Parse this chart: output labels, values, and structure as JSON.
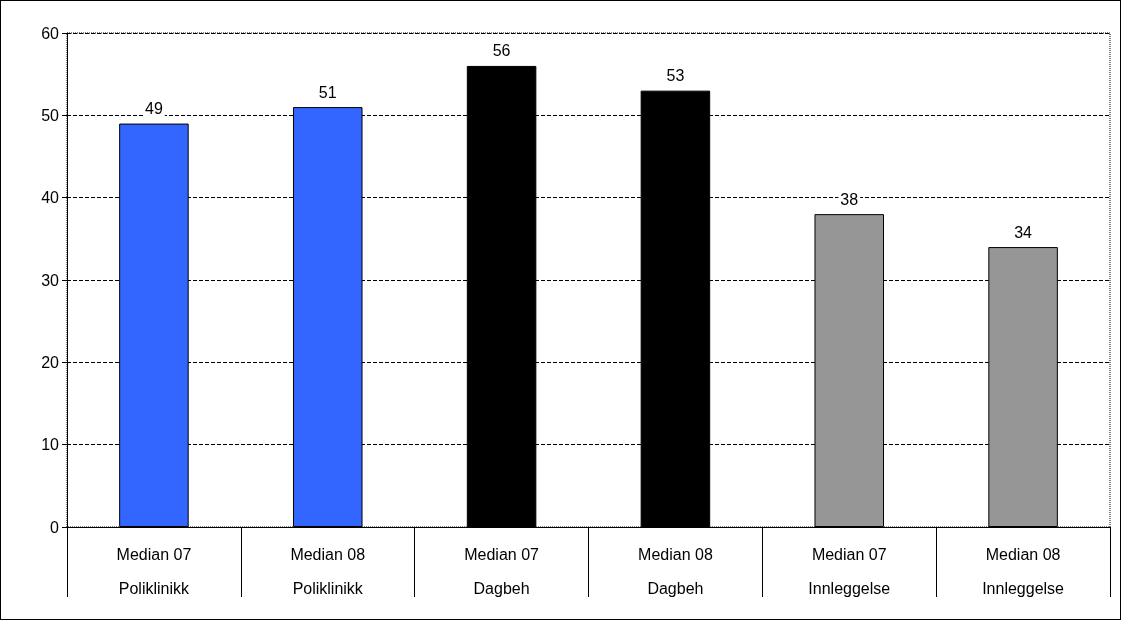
{
  "chart_data": {
    "type": "bar",
    "categories": [
      "Median 07\nPoliklinikk",
      "Median 08\nPoliklinikk",
      "Median 07\nDagbeh",
      "Median 08\nDagbeh",
      "Median 07\nInnleggelse",
      "Median 08\nInnleggelse"
    ],
    "values": [
      49,
      51,
      56,
      53,
      38,
      34
    ],
    "colors": [
      "#3366ff",
      "#3366ff",
      "#000000",
      "#000000",
      "#969696",
      "#969696"
    ],
    "ylim": [
      0,
      60
    ],
    "yticks": [
      0,
      10,
      20,
      30,
      40,
      50,
      60
    ],
    "grid": "y",
    "data_labels": true
  }
}
